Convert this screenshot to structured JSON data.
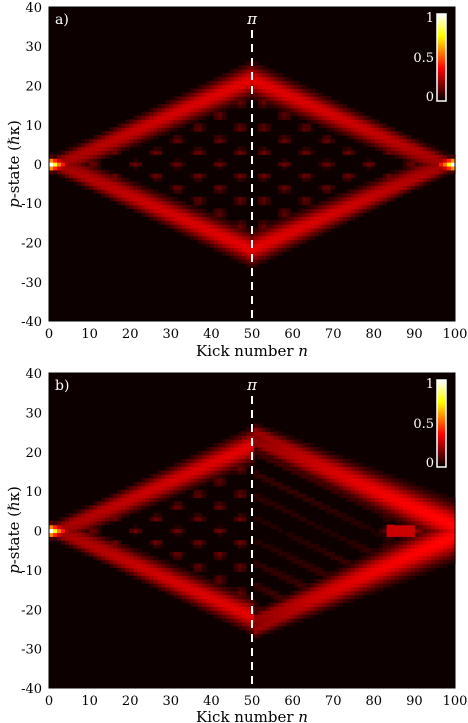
{
  "chart_data": [
    {
      "type": "heatmap",
      "panel_label": "a)",
      "xlabel_main": "Kick number ",
      "xlabel_var": "n",
      "ylabel_var": "p",
      "ylabel_main": "-state (ℏκ)",
      "xlim": [
        0,
        100
      ],
      "ylim": [
        -40,
        40
      ],
      "xticks": [
        "0",
        "10",
        "20",
        "30",
        "40",
        "50",
        "60",
        "70",
        "80",
        "90",
        "100"
      ],
      "yticks": [
        "40",
        "30",
        "20",
        "10",
        "0",
        "-10",
        "-20",
        "-30",
        "-40"
      ],
      "marker_x": 50,
      "marker_label": "π",
      "colorbar": {
        "ticks": [
          "1",
          "0.5",
          "0"
        ],
        "range": [
          0,
          1
        ],
        "colormap": "hot"
      },
      "pattern": "symmetric-return",
      "max_spread": 23
    },
    {
      "type": "heatmap",
      "panel_label": "b)",
      "xlabel_main": "Kick number ",
      "xlabel_var": "n",
      "ylabel_var": "p",
      "ylabel_main": "-state (ℏκ)",
      "xlim": [
        0,
        100
      ],
      "ylim": [
        -40,
        40
      ],
      "xticks": [
        "0",
        "10",
        "20",
        "30",
        "40",
        "50",
        "60",
        "70",
        "80",
        "90",
        "100"
      ],
      "yticks": [
        "40",
        "30",
        "20",
        "10",
        "0",
        "-10",
        "-20",
        "-30",
        "-40"
      ],
      "marker_x": 50,
      "marker_label": "π",
      "colorbar": {
        "ticks": [
          "1",
          "0.5",
          "0"
        ],
        "range": [
          0,
          1
        ],
        "colormap": "hot"
      },
      "pattern": "imperfect-return",
      "max_spread": 23
    }
  ]
}
